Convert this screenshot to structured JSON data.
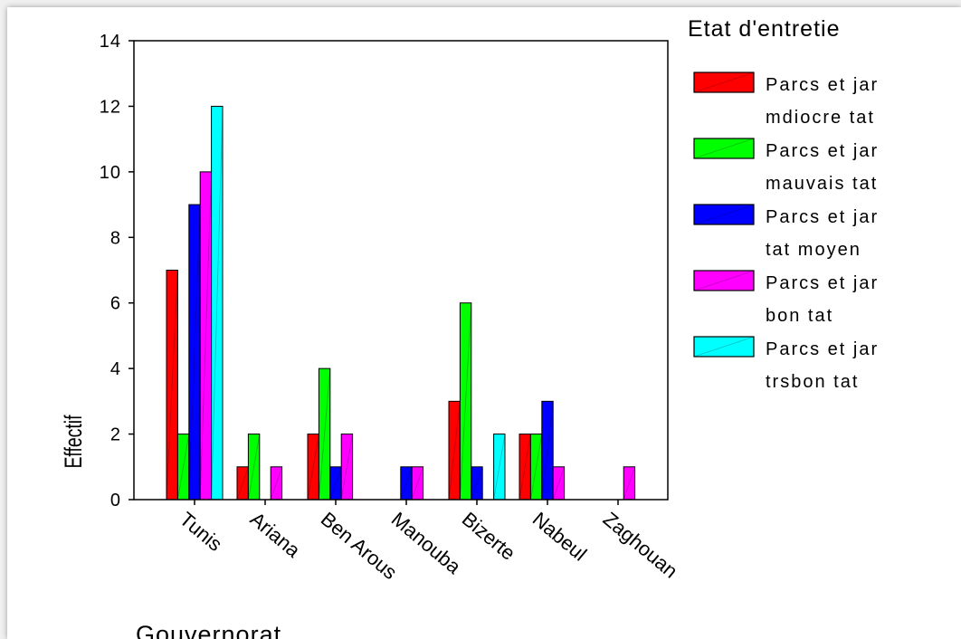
{
  "chart_data": {
    "type": "bar",
    "xlabel": "Gouvernorat",
    "ylabel": "Effectif",
    "ylim": [
      0,
      14
    ],
    "yticks": [
      0,
      2,
      4,
      6,
      8,
      10,
      12,
      14
    ],
    "categories": [
      "Tunis",
      "Ariana",
      "Ben Arous",
      "Manouba",
      "Bizerte",
      "Nabeul",
      "Zaghouan"
    ],
    "legend": {
      "title": "Etat d'entretie",
      "position": "right"
    },
    "series": [
      {
        "name_line1": "Parcs et jar",
        "name_line2": "mdiocre tat",
        "color": "#ff0000",
        "values": [
          7,
          1,
          2,
          0,
          3,
          2,
          0
        ]
      },
      {
        "name_line1": "Parcs et jar",
        "name_line2": "mauvais tat",
        "color": "#00ff00",
        "values": [
          2,
          2,
          4,
          0,
          6,
          2,
          0
        ]
      },
      {
        "name_line1": "Parcs et jar",
        "name_line2": "tat  moyen",
        "color": "#0000ff",
        "values": [
          9,
          0,
          1,
          1,
          1,
          3,
          0
        ]
      },
      {
        "name_line1": "Parcs et jar",
        "name_line2": "bon tat",
        "color": "#ff00ff",
        "values": [
          10,
          1,
          2,
          1,
          0,
          1,
          1
        ]
      },
      {
        "name_line1": "Parcs et jar",
        "name_line2": "trsbon tat",
        "color": "#00ffff",
        "values": [
          12,
          0,
          0,
          0,
          2,
          0,
          0
        ]
      }
    ]
  }
}
